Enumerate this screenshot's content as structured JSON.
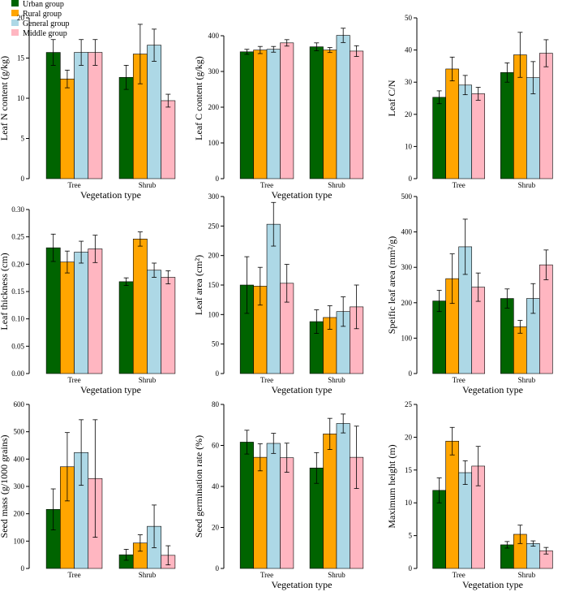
{
  "colors": {
    "Urban group": "#006400",
    "Rural group": "#FFA500",
    "General group": "#ADD8E6",
    "Middle group": "#FFB6C1",
    "axis": "#000000",
    "error_bar": "#000000"
  },
  "legend": {
    "placement": "top-left",
    "labels": [
      "Urban group",
      "Rural group",
      "General group",
      "Middle group"
    ]
  },
  "chart_data": [
    {
      "type": "bar",
      "categories": [
        "Tree",
        "Shrub"
      ],
      "xlabel": "Vegetation type",
      "ylabel": "Leaf  N content (g/kg)",
      "ylim": [
        0,
        20
      ],
      "yticks": [
        0,
        5,
        10,
        15,
        20
      ],
      "ytick_labels": [
        "0",
        "5",
        "10",
        "15",
        "20"
      ],
      "series": [
        {
          "name": "Urban group",
          "values": [
            15.7,
            12.6
          ],
          "errors": [
            1.6,
            1.5
          ]
        },
        {
          "name": "Rural group",
          "values": [
            12.4,
            15.5
          ],
          "errors": [
            1.1,
            3.7
          ]
        },
        {
          "name": "General group",
          "values": [
            15.7,
            16.6
          ],
          "errors": [
            1.6,
            2.0
          ]
        },
        {
          "name": "Middle group",
          "values": [
            15.7,
            9.7
          ],
          "errors": [
            1.6,
            0.8
          ]
        }
      ]
    },
    {
      "type": "bar",
      "categories": [
        "Tree",
        "Shrub"
      ],
      "xlabel": "Vegetation type",
      "ylabel": "Leaf  C content (g/kg)",
      "ylim": [
        0,
        450
      ],
      "yticks": [
        0,
        100,
        200,
        300,
        400
      ],
      "ytick_labels": [
        "0",
        "100",
        "200",
        "300",
        "400"
      ],
      "series": [
        {
          "name": "Urban group",
          "values": [
            355,
            369
          ],
          "errors": [
            7,
            11
          ]
        },
        {
          "name": "Rural group",
          "values": [
            360,
            360
          ],
          "errors": [
            10,
            7
          ]
        },
        {
          "name": "General group",
          "values": [
            362,
            401
          ],
          "errors": [
            8,
            20
          ]
        },
        {
          "name": "Middle group",
          "values": [
            380,
            357
          ],
          "errors": [
            9,
            15
          ]
        }
      ]
    },
    {
      "type": "bar",
      "categories": [
        "Tree",
        "Shrub"
      ],
      "xlabel": "",
      "ylabel": "Leaf  C/N",
      "ylim": [
        0,
        50
      ],
      "yticks": [
        0,
        10,
        20,
        30,
        40,
        50
      ],
      "ytick_labels": [
        "0",
        "10",
        "20",
        "30",
        "40",
        "50"
      ],
      "series": [
        {
          "name": "Urban group",
          "values": [
            25.3,
            33.0
          ],
          "errors": [
            2.0,
            3.0
          ]
        },
        {
          "name": "Rural group",
          "values": [
            34.1,
            38.5
          ],
          "errors": [
            3.7,
            7.0
          ]
        },
        {
          "name": "General group",
          "values": [
            29.1,
            31.4
          ],
          "errors": [
            3.0,
            5.0
          ]
        },
        {
          "name": "Middle group",
          "values": [
            26.4,
            39.0
          ],
          "errors": [
            2.0,
            4.2
          ]
        }
      ]
    },
    {
      "type": "bar",
      "categories": [
        "Tree",
        "Shrub"
      ],
      "xlabel": "Vegetation type",
      "ylabel": "Leaf  thickness (cm)",
      "ylim": [
        0,
        0.3
      ],
      "yticks": [
        0,
        0.05,
        0.1,
        0.15,
        0.2,
        0.25,
        0.3
      ],
      "ytick_labels": [
        "0.00",
        "0.05",
        "0.10",
        "0.15",
        "0.20",
        "0.25",
        "0.30"
      ],
      "series": [
        {
          "name": "Urban group",
          "values": [
            0.23,
            0.168
          ],
          "errors": [
            0.025,
            0.007
          ]
        },
        {
          "name": "Rural group",
          "values": [
            0.204,
            0.246
          ],
          "errors": [
            0.02,
            0.013
          ]
        },
        {
          "name": "General group",
          "values": [
            0.222,
            0.189
          ],
          "errors": [
            0.02,
            0.013
          ]
        },
        {
          "name": "Middle group",
          "values": [
            0.228,
            0.176
          ],
          "errors": [
            0.025,
            0.012
          ]
        }
      ]
    },
    {
      "type": "bar",
      "categories": [
        "Tree",
        "Shrub"
      ],
      "xlabel": "Vegetation type",
      "ylabel": "Leaf  area (cm²)",
      "ylim": [
        0,
        300
      ],
      "yticks": [
        0,
        50,
        100,
        150,
        200,
        250,
        300
      ],
      "ytick_labels": [
        "0",
        "50",
        "100",
        "150",
        "200",
        "250",
        "300"
      ],
      "series": [
        {
          "name": "Urban group",
          "values": [
            150,
            88
          ],
          "errors": [
            48,
            20
          ]
        },
        {
          "name": "Rural group",
          "values": [
            148,
            95
          ],
          "errors": [
            32,
            20
          ]
        },
        {
          "name": "General group",
          "values": [
            253,
            105
          ],
          "errors": [
            37,
            25
          ]
        },
        {
          "name": "Middle group",
          "values": [
            153,
            113
          ],
          "errors": [
            32,
            37
          ]
        }
      ]
    },
    {
      "type": "bar",
      "categories": [
        "Tree",
        "Shrub"
      ],
      "xlabel": "Vegetation type",
      "ylabel": "Speific leaf area (mm²/g)",
      "ylim": [
        0,
        500
      ],
      "yticks": [
        0,
        100,
        200,
        300,
        400,
        500
      ],
      "ytick_labels": [
        "0",
        "100",
        "200",
        "300",
        "400",
        "500"
      ],
      "series": [
        {
          "name": "Urban group",
          "values": [
            205,
            212
          ],
          "errors": [
            30,
            27
          ]
        },
        {
          "name": "Rural group",
          "values": [
            268,
            132
          ],
          "errors": [
            70,
            18
          ]
        },
        {
          "name": "General group",
          "values": [
            358,
            212
          ],
          "errors": [
            78,
            42
          ]
        },
        {
          "name": "Middle group",
          "values": [
            244,
            307
          ],
          "errors": [
            40,
            42
          ]
        }
      ]
    },
    {
      "type": "bar",
      "categories": [
        "Tree",
        "Shrub"
      ],
      "xlabel": "",
      "ylabel": "Seed mass (g/1000 grains)",
      "ylim": [
        0,
        600
      ],
      "yticks": [
        0,
        100,
        200,
        300,
        400,
        500,
        600
      ],
      "ytick_labels": [
        "0",
        "100",
        "200",
        "300",
        "400",
        "500",
        "600"
      ],
      "series": [
        {
          "name": "Urban group",
          "values": [
            216,
            50
          ],
          "errors": [
            75,
            20
          ]
        },
        {
          "name": "Rural group",
          "values": [
            372,
            93
          ],
          "errors": [
            125,
            30
          ]
        },
        {
          "name": "General group",
          "values": [
            424,
            154
          ],
          "errors": [
            120,
            78
          ]
        },
        {
          "name": "Middle group",
          "values": [
            329,
            48
          ],
          "errors": [
            215,
            35
          ]
        }
      ]
    },
    {
      "type": "bar",
      "categories": [
        "Tree",
        "Shrub"
      ],
      "xlabel": "Vegetation type",
      "ylabel": "Seed germination rate (%)",
      "ylim": [
        0,
        80
      ],
      "yticks": [
        0,
        20,
        40,
        60,
        80
      ],
      "ytick_labels": [
        "0",
        "20",
        "40",
        "60",
        "80"
      ],
      "series": [
        {
          "name": "Urban group",
          "values": [
            61.6,
            49.0
          ],
          "errors": [
            5.8,
            7.5
          ]
        },
        {
          "name": "Rural group",
          "values": [
            54.2,
            65.6
          ],
          "errors": [
            6.6,
            7.6
          ]
        },
        {
          "name": "General group",
          "values": [
            61.0,
            70.7
          ],
          "errors": [
            4.9,
            4.6
          ]
        },
        {
          "name": "Middle group",
          "values": [
            54.0,
            54.2
          ],
          "errors": [
            7.1,
            15.2
          ]
        }
      ]
    },
    {
      "type": "bar",
      "categories": [
        "Tree",
        "Shrub"
      ],
      "xlabel": "Vegetation type",
      "ylabel": "Maximum height (m)",
      "ylim": [
        0,
        25
      ],
      "yticks": [
        0,
        5,
        10,
        15,
        20,
        25
      ],
      "ytick_labels": [
        "0",
        "5",
        "10",
        "15",
        "20",
        "25"
      ],
      "series": [
        {
          "name": "Urban group",
          "values": [
            11.9,
            3.6
          ],
          "errors": [
            1.9,
            0.5
          ]
        },
        {
          "name": "Rural group",
          "values": [
            19.4,
            5.2
          ],
          "errors": [
            2.1,
            1.4
          ]
        },
        {
          "name": "General group",
          "values": [
            14.6,
            3.8
          ],
          "errors": [
            1.8,
            0.4
          ]
        },
        {
          "name": "Middle group",
          "values": [
            15.6,
            2.7
          ],
          "errors": [
            3.0,
            0.5
          ]
        }
      ]
    }
  ]
}
